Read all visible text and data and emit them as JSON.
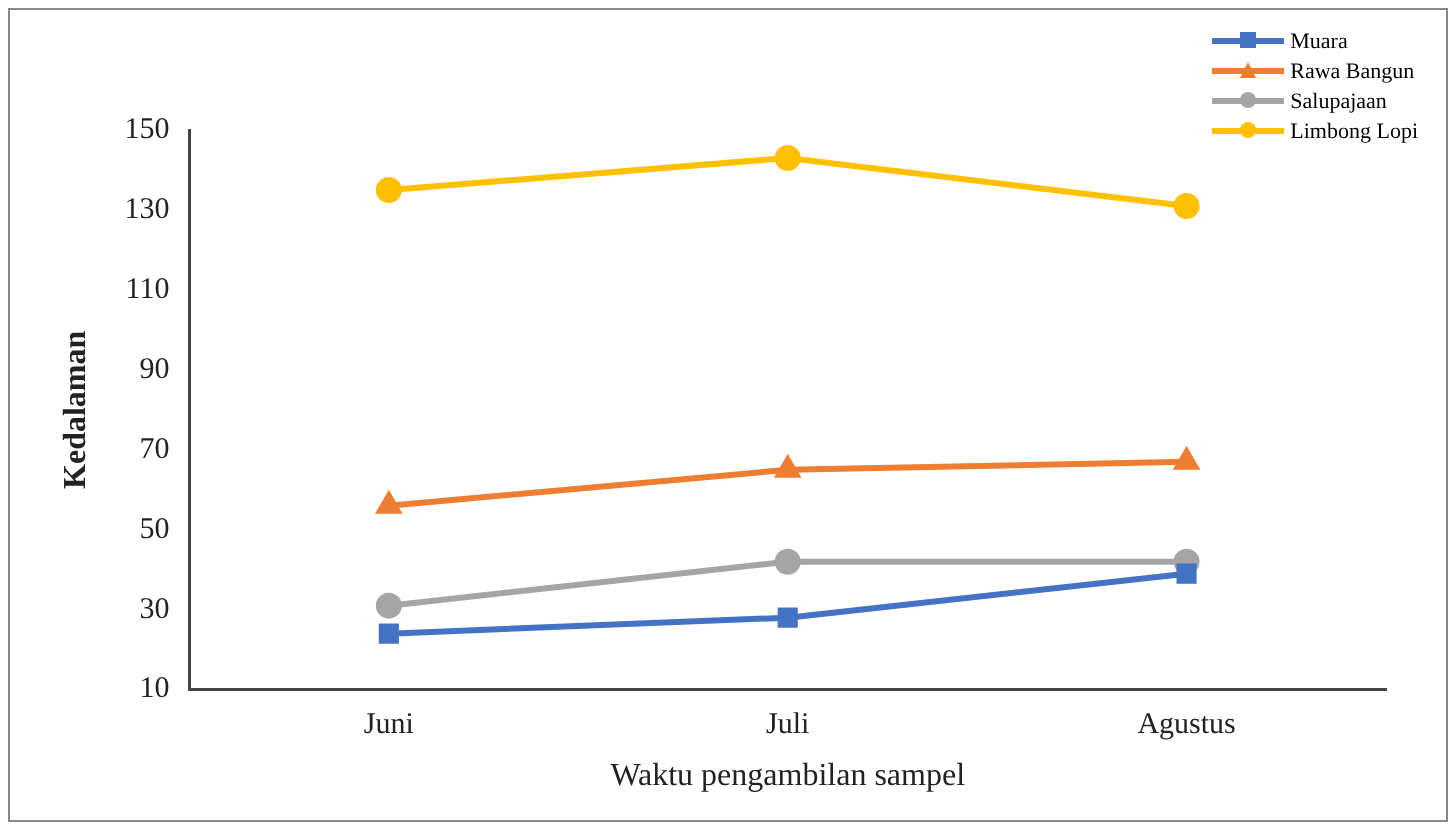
{
  "chart_data": {
    "type": "line",
    "xlabel": "Waktu pengambilan sampel",
    "ylabel": "Kedalaman",
    "categories": [
      "Juni",
      "Juli",
      "Agustus"
    ],
    "series": [
      {
        "name": "Muara",
        "color": "#4472c4",
        "marker": "square",
        "values": [
          24,
          28,
          39
        ]
      },
      {
        "name": "Rawa Bangun",
        "color": "#ed7d31",
        "marker": "triangle",
        "values": [
          56,
          65,
          67
        ]
      },
      {
        "name": "Salupajaan",
        "color": "#a5a5a5",
        "marker": "circle",
        "values": [
          31,
          42,
          42
        ]
      },
      {
        "name": "Limbong Lopi",
        "color": "#ffc000",
        "marker": "circle",
        "values": [
          135,
          143,
          131
        ]
      }
    ],
    "ylim": [
      10,
      150
    ],
    "yticks": [
      10,
      30,
      50,
      70,
      90,
      110,
      130,
      150
    ],
    "grid": false,
    "legend": "top right"
  }
}
